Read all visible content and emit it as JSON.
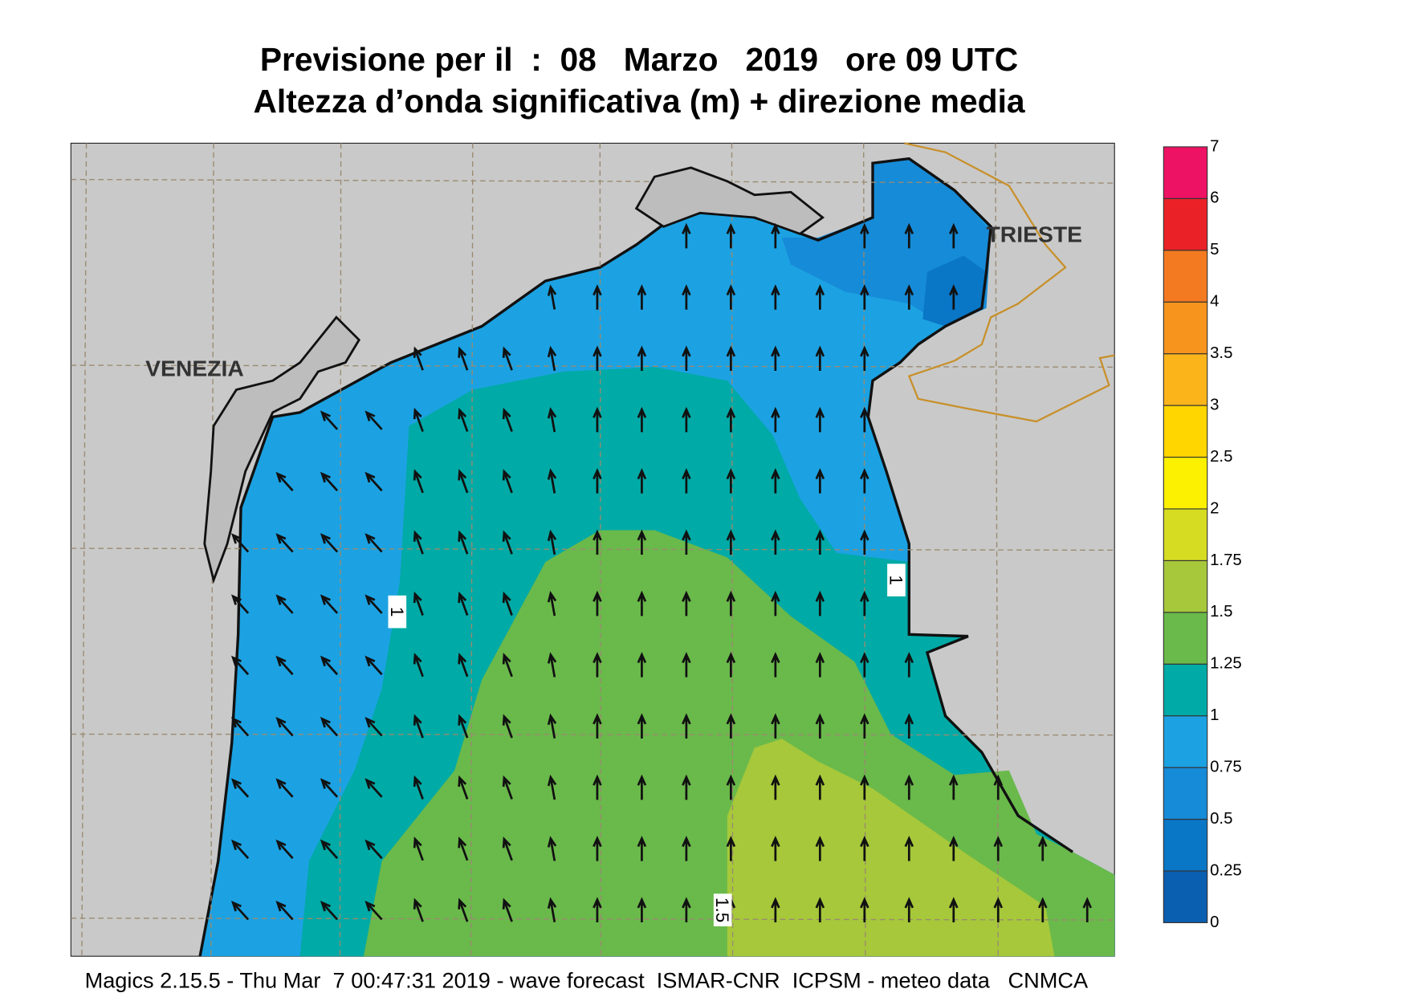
{
  "header": {
    "title": "Previsione per il  :  08   Marzo   2019   ore 09 UTC",
    "subtitle": "Altezza d’onda significativa (m) + direzione media"
  },
  "map": {
    "places": [
      "VENEZIA",
      "TRIESTE"
    ],
    "contour_labels": [
      1,
      1,
      1.5
    ]
  },
  "colorbar": {
    "levels": [
      0,
      0.25,
      0.5,
      0.75,
      1,
      1.25,
      1.5,
      1.75,
      2,
      2.5,
      3,
      3.5,
      4,
      5,
      6,
      7
    ],
    "colors": [
      "#0b5fb0",
      "#0a76c6",
      "#168bd8",
      "#1ca2e2",
      "#00aaa6",
      "#6ab94b",
      "#a6c83a",
      "#d6dc22",
      "#fbf100",
      "#ffd600",
      "#fbb41a",
      "#f7941d",
      "#f37a21",
      "#ea2127",
      "#ed1263"
    ]
  },
  "footer": "Magics 2.15.5 - Thu Mar  7 00:47:31 2019 - wave forecast  ISMAR-CNR  ICPSM - meteo data   CNMCA"
}
